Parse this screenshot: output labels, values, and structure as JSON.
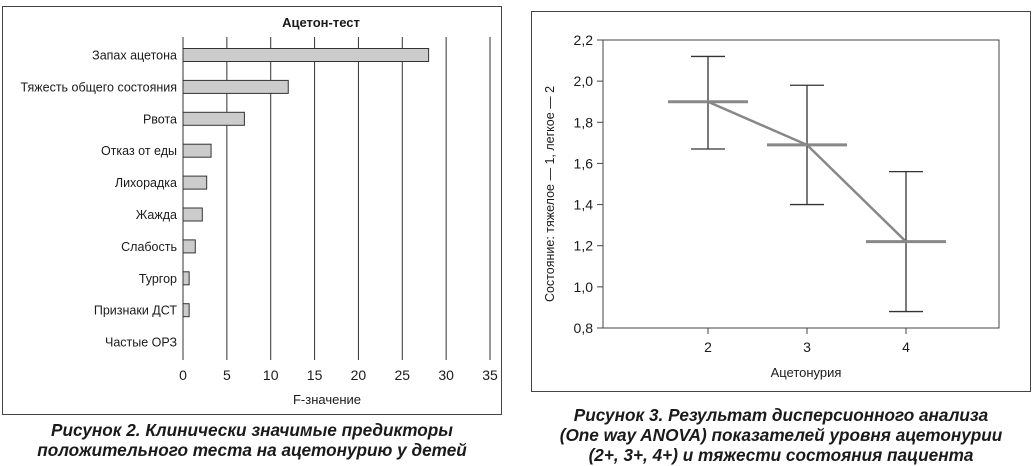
{
  "figures": {
    "left": {
      "caption_lines": [
        "Рисунок 2. Клинически значимые предикторы",
        "положительного теста на ацетонурию у детей"
      ]
    },
    "right": {
      "caption_lines": [
        "Рисунок 3. Результат дисперсионного анализа",
        "(One way ANOVA) показателей уровня ацетонурии",
        "(2+, 3+, 4+) и тяжести состояния пациента"
      ]
    }
  },
  "chart_data": [
    {
      "type": "bar",
      "orientation": "horizontal",
      "title": "Ацетон-тест",
      "xlabel": "F-значение",
      "ylabel": "",
      "categories": [
        "Запах ацетона",
        "Тяжесть общего состояния",
        "Рвота",
        "Отказ от еды",
        "Лихорадка",
        "Жажда",
        "Слабость",
        "Тургор",
        "Признаки ДСТ",
        "Частые ОРЗ"
      ],
      "values": [
        28,
        12,
        7,
        3.2,
        2.7,
        2.2,
        1.4,
        0.7,
        0.7,
        0
      ],
      "xlim": [
        0,
        35
      ],
      "xticks": [
        0,
        5,
        10,
        15,
        20,
        25,
        30,
        35
      ],
      "grid": "vertical",
      "colors": {
        "bar_fill": "#cccccc",
        "bar_stroke": "#333333",
        "grid": "#333333"
      }
    },
    {
      "type": "line",
      "subtype": "means-with-error-bars",
      "title": "",
      "xlabel": "Ацетонурия",
      "ylabel": "Состояние: тяжелое — 1, легкое — 2",
      "x": [
        2,
        3,
        4
      ],
      "mean": [
        1.9,
        1.69,
        1.22
      ],
      "upper": [
        2.12,
        1.98,
        1.56
      ],
      "lower": [
        1.67,
        1.4,
        0.88
      ],
      "ylim": [
        0.8,
        2.2
      ],
      "yticks": [
        "0,8",
        "1,0",
        "1,2",
        "1,4",
        "1,6",
        "1,8",
        "2,0",
        "2,2"
      ],
      "xticks": [
        "2",
        "3",
        "4"
      ],
      "colors": {
        "mean_line": "#888888",
        "error_bar": "#333333"
      }
    }
  ]
}
